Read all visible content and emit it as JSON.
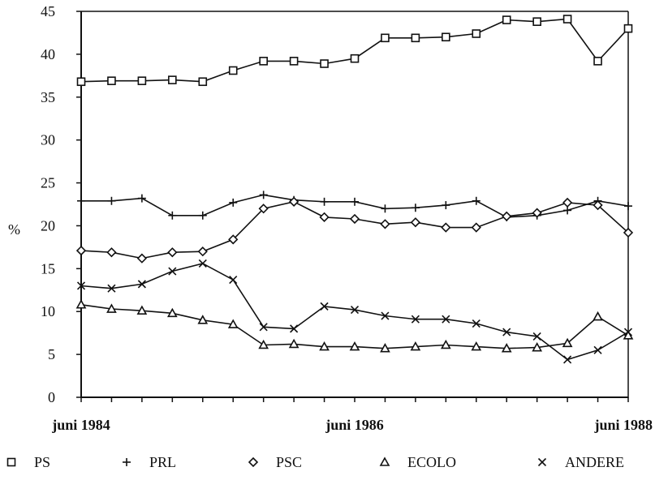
{
  "chart_data": {
    "type": "line",
    "title": "",
    "xlabel": "",
    "ylabel": "%",
    "ylim": [
      0,
      45
    ],
    "yticks": [
      "0",
      "5",
      "10",
      "15",
      "20",
      "25",
      "30",
      "35",
      "40",
      "45"
    ],
    "x_tick_labels": [
      {
        "index": 0,
        "label": "juni 1984"
      },
      {
        "index": 9,
        "label": "juni 1986"
      },
      {
        "index": 18,
        "label": "juni 1988"
      }
    ],
    "n_points": 19,
    "legend_position": "bottom",
    "grid": false,
    "series": [
      {
        "name": "PS",
        "marker": "square",
        "marker_glyph": "□",
        "values": [
          36.8,
          36.9,
          36.9,
          37.0,
          36.8,
          38.1,
          39.2,
          39.2,
          38.9,
          39.5,
          41.9,
          41.9,
          42.0,
          42.4,
          44.0,
          43.8,
          44.1,
          39.2,
          43.0
        ]
      },
      {
        "name": "PRL",
        "marker": "plus",
        "marker_glyph": "+",
        "values": [
          22.9,
          22.9,
          23.2,
          21.2,
          21.2,
          22.7,
          23.6,
          23.0,
          22.8,
          22.8,
          22.0,
          22.1,
          22.4,
          22.9,
          21.0,
          21.2,
          21.8,
          22.9,
          22.3
        ]
      },
      {
        "name": "PSC",
        "marker": "diamond",
        "marker_glyph": "◇",
        "values": [
          17.1,
          16.9,
          16.2,
          16.9,
          17.0,
          18.4,
          22.0,
          22.8,
          21.0,
          20.8,
          20.2,
          20.4,
          19.8,
          19.8,
          21.1,
          21.5,
          22.7,
          22.4,
          19.2
        ]
      },
      {
        "name": "ECOLO",
        "marker": "triangle",
        "marker_glyph": "△",
        "values": [
          10.8,
          10.3,
          10.1,
          9.8,
          9.0,
          8.5,
          6.1,
          6.2,
          5.9,
          5.9,
          5.7,
          5.9,
          6.1,
          5.9,
          5.7,
          5.8,
          6.3,
          9.4,
          7.2
        ]
      },
      {
        "name": "ANDERE",
        "marker": "cross",
        "marker_glyph": "×",
        "values": [
          13.0,
          12.7,
          13.2,
          14.7,
          15.6,
          13.7,
          8.2,
          8.0,
          10.6,
          10.2,
          9.5,
          9.1,
          9.1,
          8.6,
          7.6,
          7.1,
          4.4,
          5.5,
          7.6
        ]
      }
    ]
  }
}
